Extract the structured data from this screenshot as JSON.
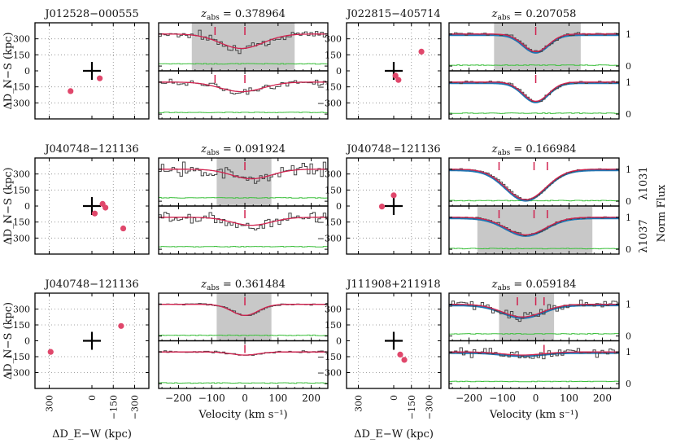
{
  "chart_data": {
    "type": "line",
    "title": "",
    "ylabel_map": "ΔD_N−S (kpc)",
    "xlabel_map": "ΔD_E−W (kpc)",
    "xlabel_spec": "Velocity (km s⁻¹)",
    "ylabel_right_top": "λ1031",
    "ylabel_right_bottom": "λ1037",
    "ylabel_right_main": "Norm Flux",
    "map_axes": {
      "xlim": [
        -400,
        400
      ],
      "ylim": [
        -450,
        450
      ],
      "yticks": [
        300,
        150,
        0,
        -150,
        -300
      ],
      "xticks": [
        300,
        0,
        -150,
        -300
      ]
    },
    "spec_axes": {
      "xlim": [
        -260,
        250
      ],
      "ylim": [
        -0.15,
        1.35
      ],
      "xticks": [
        -200,
        -100,
        0,
        100,
        200
      ],
      "yticks": [
        0,
        1
      ]
    },
    "panels": [
      {
        "id": "p1",
        "sightline": "J012528−000555",
        "zabs_text": "= 0.378964",
        "galaxies": [
          {
            "de": 150,
            "dn": -190
          },
          {
            "de": -55,
            "dn": -70
          }
        ],
        "absorption": {
          "center": -10,
          "depth_top": 0.45,
          "depth_bot": 0.3,
          "width": 65
        },
        "shade": [
          -160,
          150
        ],
        "shade_panel": "top",
        "ticks_top": [
          -90,
          0
        ],
        "ticks_bot": [
          -90,
          0
        ],
        "noise_top": 0.1,
        "noise_bot": 0.07,
        "blue": false
      },
      {
        "id": "p2",
        "sightline": "J022815−405714",
        "zabs_text": "= 0.207058",
        "galaxies": [
          {
            "de": -235,
            "dn": 180
          },
          {
            "de": -15,
            "dn": -45
          },
          {
            "de": -40,
            "dn": -85
          }
        ],
        "absorption": {
          "center": 0,
          "depth_top": 0.55,
          "depth_bot": 0.6,
          "width": 38
        },
        "shade": [
          -125,
          135
        ],
        "shade_panel": "top",
        "ticks_top": [
          0
        ],
        "ticks_bot": [
          0
        ],
        "noise_top": 0.03,
        "noise_bot": 0.03,
        "blue": true
      },
      {
        "id": "p3",
        "sightline": "J040748−121136",
        "zabs_text": "= 0.091924",
        "galaxies": [
          {
            "de": -75,
            "dn": 20
          },
          {
            "de": -95,
            "dn": -15
          },
          {
            "de": -20,
            "dn": -70
          },
          {
            "de": -220,
            "dn": -210
          }
        ],
        "absorption": {
          "center": 20,
          "depth_top": 0.3,
          "depth_bot": 0.25,
          "width": 60
        },
        "shade": [
          -85,
          80
        ],
        "shade_panel": "top",
        "ticks_top": [
          0
        ],
        "ticks_bot": [
          0
        ],
        "noise_top": 0.16,
        "noise_bot": 0.12,
        "blue": false
      },
      {
        "id": "p4",
        "sightline": "J040748−121136",
        "zabs_text": "= 0.166984",
        "galaxies": [
          {
            "de": 0,
            "dn": 100
          },
          {
            "de": 100,
            "dn": -5
          }
        ],
        "absorption": {
          "center": -30,
          "depth_top": 0.95,
          "depth_bot": 0.55,
          "width": 60
        },
        "shade": [
          -175,
          170
        ],
        "shade_panel": "bottom",
        "ticks_top": [
          -110,
          -5,
          35
        ],
        "ticks_bot": [
          -110,
          -5,
          35
        ],
        "noise_top": 0.015,
        "noise_bot": 0.02,
        "blue": true
      },
      {
        "id": "p5",
        "sightline": "J040748−121136",
        "zabs_text": "= 0.361484",
        "galaxies": [
          {
            "de": -205,
            "dn": 140
          },
          {
            "de": 290,
            "dn": -105
          }
        ],
        "absorption": {
          "center": 0,
          "depth_top": 0.35,
          "depth_bot": 0.1,
          "width": 40
        },
        "shade": [
          -85,
          80
        ],
        "shade_panel": "top",
        "ticks_top": [
          0
        ],
        "ticks_bot": [
          0
        ],
        "noise_top": 0.02,
        "noise_bot": 0.02,
        "blue": false
      },
      {
        "id": "p6",
        "sightline": "J111908+211918",
        "zabs_text": "= 0.059184",
        "galaxies": [
          {
            "de": -55,
            "dn": -130
          },
          {
            "de": -90,
            "dn": -180
          }
        ],
        "absorption": {
          "center": -40,
          "depth_top": 0.4,
          "depth_bot": 0.1,
          "width": 60
        },
        "shade": [
          -110,
          55
        ],
        "shade_panel": "top",
        "ticks_top": [
          -55,
          0,
          25
        ],
        "ticks_bot": [
          25
        ],
        "noise_top": 0.1,
        "noise_bot": 0.1,
        "blue": true
      }
    ]
  }
}
